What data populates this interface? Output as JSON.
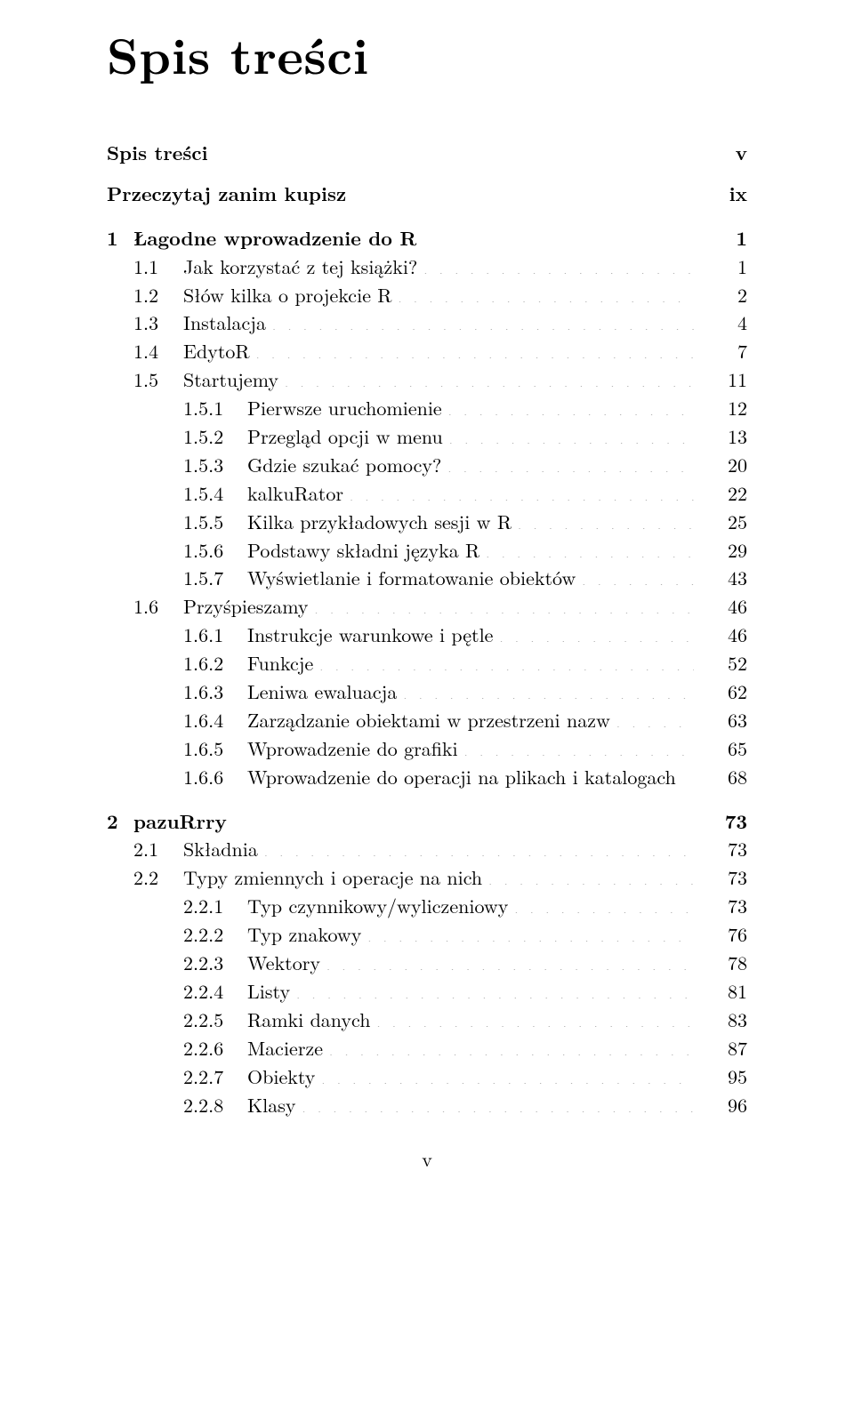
{
  "heading": "Spis treści",
  "footer_page": "v",
  "front": [
    {
      "title": "Spis treści",
      "page": "v"
    },
    {
      "title": "Przeczytaj zanim kupisz",
      "page": "ix"
    }
  ],
  "chapters": [
    {
      "num": "1",
      "title": "Łagodne wprowadzenie do R",
      "page": "1",
      "sections": [
        {
          "num": "1.1",
          "title": "Jak korzystać z tej książki?",
          "page": "1",
          "subs": []
        },
        {
          "num": "1.2",
          "title": "Słów kilka o projekcie R",
          "page": "2",
          "subs": []
        },
        {
          "num": "1.3",
          "title": "Instalacja",
          "page": "4",
          "subs": []
        },
        {
          "num": "1.4",
          "title": "EdytoR",
          "page": "7",
          "subs": []
        },
        {
          "num": "1.5",
          "title": "Startujemy",
          "page": "11",
          "subs": [
            {
              "num": "1.5.1",
              "title": "Pierwsze uruchomienie",
              "page": "12"
            },
            {
              "num": "1.5.2",
              "title": "Przegląd opcji w menu",
              "page": "13"
            },
            {
              "num": "1.5.3",
              "title": "Gdzie szukać pomocy?",
              "page": "20"
            },
            {
              "num": "1.5.4",
              "title": "kalkuRator",
              "page": "22"
            },
            {
              "num": "1.5.5",
              "title": "Kilka przykładowych sesji w R",
              "page": "25"
            },
            {
              "num": "1.5.6",
              "title": "Podstawy składni języka R",
              "page": "29"
            },
            {
              "num": "1.5.7",
              "title": "Wyświetlanie i formatowanie obiektów",
              "page": "43"
            }
          ]
        },
        {
          "num": "1.6",
          "title": "Przyśpieszamy",
          "page": "46",
          "subs": [
            {
              "num": "1.6.1",
              "title": "Instrukcje warunkowe i pętle",
              "page": "46"
            },
            {
              "num": "1.6.2",
              "title": "Funkcje",
              "page": "52"
            },
            {
              "num": "1.6.3",
              "title": "Leniwa ewaluacja",
              "page": "62"
            },
            {
              "num": "1.6.4",
              "title": "Zarządzanie obiektami w przestrzeni nazw",
              "page": "63"
            },
            {
              "num": "1.6.5",
              "title": "Wprowadzenie do grafiki",
              "page": "65"
            },
            {
              "num": "1.6.6",
              "title": "Wprowadzenie do operacji na plikach i katalogach",
              "page": "68"
            }
          ]
        }
      ]
    },
    {
      "num": "2",
      "title": "pazuRrry",
      "page": "73",
      "sections": [
        {
          "num": "2.1",
          "title": "Składnia",
          "page": "73",
          "subs": []
        },
        {
          "num": "2.2",
          "title": "Typy zmiennych i operacje na nich",
          "page": "73",
          "subs": [
            {
              "num": "2.2.1",
              "title": "Typ czynnikowy/wyliczeniowy",
              "page": "73"
            },
            {
              "num": "2.2.2",
              "title": "Typ znakowy",
              "page": "76"
            },
            {
              "num": "2.2.3",
              "title": "Wektory",
              "page": "78"
            },
            {
              "num": "2.2.4",
              "title": "Listy",
              "page": "81"
            },
            {
              "num": "2.2.5",
              "title": "Ramki danych",
              "page": "83"
            },
            {
              "num": "2.2.6",
              "title": "Macierze",
              "page": "87"
            },
            {
              "num": "2.2.7",
              "title": "Obiekty",
              "page": "95"
            },
            {
              "num": "2.2.8",
              "title": "Klasy",
              "page": "96"
            }
          ]
        }
      ]
    }
  ]
}
